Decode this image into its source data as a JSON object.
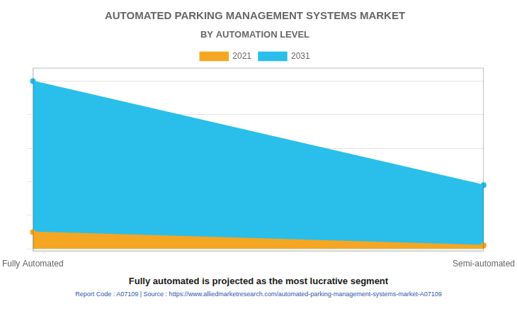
{
  "chart_data": {
    "type": "area",
    "title": "AUTOMATED PARKING MANAGEMENT SYSTEMS MARKET",
    "subtitle": "BY AUTOMATION LEVEL",
    "annotations": [
      "Fully automated is projected as the most lucrative segment",
      "Report Code : A07109  |  Source : https://www.alliedmarketresearch.com/automated-parking-management-systems-market-A07109"
    ],
    "categories": [
      "Fully Automated",
      "Semi-automated"
    ],
    "series": [
      {
        "name": "2021",
        "color": "#F5A623",
        "values": [
          0.1,
          0.02
        ]
      },
      {
        "name": "2031",
        "color": "#29BFEA",
        "values": [
          1.0,
          0.38
        ]
      }
    ],
    "ylim": [
      -0.015,
      1.08
    ],
    "yticks": [
      0,
      0.2,
      0.4,
      0.6,
      0.8,
      1.0
    ],
    "tick_labels": "x",
    "grid": true,
    "legend": "top"
  }
}
